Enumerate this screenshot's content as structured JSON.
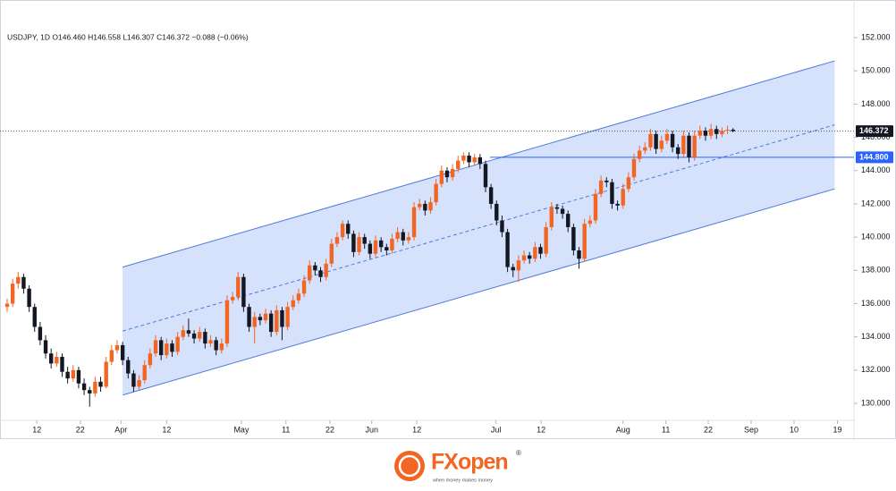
{
  "chart_data": {
    "type": "candlestick",
    "title": "USDJPY, 1D  O146.460  H146.558  L146.307  C146.372  −0.088 (−0.06%)",
    "up_color": "#f26522",
    "down_color": "#131722",
    "xlim": [
      -1.3,
      154
    ],
    "ylim": [
      128.98,
      154.26
    ],
    "yticks": [
      {
        "value": 130,
        "label": "130.000"
      },
      {
        "value": 132,
        "label": "132.000"
      },
      {
        "value": 134,
        "label": "134.000"
      },
      {
        "value": 136,
        "label": "136.000"
      },
      {
        "value": 138,
        "label": "138.000"
      },
      {
        "value": 140,
        "label": "140.000"
      },
      {
        "value": 142,
        "label": "142.000"
      },
      {
        "value": 144,
        "label": "144.000"
      },
      {
        "value": 146,
        "label": "146.000"
      },
      {
        "value": 148,
        "label": "148.000"
      },
      {
        "value": 150,
        "label": "150.000"
      },
      {
        "value": 152,
        "label": "152.000"
      }
    ],
    "xticks": [
      {
        "value": 5.4,
        "label": "12"
      },
      {
        "value": 13.3,
        "label": "22"
      },
      {
        "value": 20.7,
        "label": "Apr"
      },
      {
        "value": 29,
        "label": "12"
      },
      {
        "value": 42.6,
        "label": "May"
      },
      {
        "value": 50.7,
        "label": "11"
      },
      {
        "value": 58.7,
        "label": "22"
      },
      {
        "value": 66.3,
        "label": "Jun"
      },
      {
        "value": 74.5,
        "label": "12"
      },
      {
        "value": 88.9,
        "label": "Jul"
      },
      {
        "value": 97.1,
        "label": "12"
      },
      {
        "value": 112,
        "label": "Aug"
      },
      {
        "value": 119.8,
        "label": "11"
      },
      {
        "value": 127.5,
        "label": "22"
      },
      {
        "value": 135.3,
        "label": "Sep"
      },
      {
        "value": 143.1,
        "label": "10"
      },
      {
        "value": 151,
        "label": "19"
      }
    ],
    "candles": [
      [
        135.8,
        136.3,
        135.5,
        136.0
      ],
      [
        136.0,
        137.5,
        135.8,
        137.2
      ],
      [
        137.2,
        137.9,
        136.9,
        137.6
      ],
      [
        137.6,
        137.8,
        136.6,
        136.9
      ],
      [
        136.9,
        137.1,
        135.5,
        135.8
      ],
      [
        135.8,
        136.0,
        134.3,
        134.6
      ],
      [
        134.6,
        134.9,
        133.5,
        133.8
      ],
      [
        133.8,
        134.1,
        132.7,
        133.0
      ],
      [
        133.0,
        133.3,
        132.1,
        132.4
      ],
      [
        132.4,
        133.1,
        132.2,
        132.8
      ],
      [
        132.8,
        133.0,
        131.6,
        131.9
      ],
      [
        131.9,
        132.2,
        131.2,
        131.5
      ],
      [
        131.5,
        132.3,
        131.3,
        132.0
      ],
      [
        132.0,
        132.2,
        130.9,
        131.2
      ],
      [
        131.2,
        131.5,
        130.5,
        130.8
      ],
      [
        130.8,
        131.0,
        129.8,
        130.6
      ],
      [
        130.6,
        131.6,
        130.4,
        131.3
      ],
      [
        131.3,
        131.6,
        130.7,
        131.0
      ],
      [
        131.0,
        132.8,
        130.9,
        132.5
      ],
      [
        132.5,
        133.5,
        132.3,
        133.2
      ],
      [
        133.2,
        133.8,
        133.0,
        133.5
      ],
      [
        133.5,
        133.7,
        132.3,
        132.6
      ],
      [
        132.6,
        132.8,
        131.5,
        131.8
      ],
      [
        131.8,
        132.0,
        130.7,
        131.0
      ],
      [
        131.0,
        131.7,
        130.8,
        131.4
      ],
      [
        131.4,
        132.6,
        131.2,
        132.3
      ],
      [
        132.3,
        133.3,
        132.1,
        133.0
      ],
      [
        133.0,
        134.1,
        132.8,
        133.8
      ],
      [
        133.8,
        134.0,
        132.6,
        132.9
      ],
      [
        132.9,
        133.9,
        132.7,
        133.6
      ],
      [
        133.6,
        133.8,
        132.8,
        133.1
      ],
      [
        133.1,
        134.3,
        132.9,
        134.0
      ],
      [
        134.0,
        134.7,
        133.8,
        134.4
      ],
      [
        134.4,
        135.1,
        134.0,
        134.2
      ],
      [
        134.2,
        134.4,
        133.6,
        133.9
      ],
      [
        133.9,
        134.6,
        133.7,
        134.3
      ],
      [
        134.3,
        134.5,
        133.3,
        133.6
      ],
      [
        133.6,
        134.1,
        133.4,
        133.8
      ],
      [
        133.8,
        134.0,
        132.9,
        133.2
      ],
      [
        133.2,
        133.9,
        133.0,
        133.6
      ],
      [
        133.6,
        136.5,
        133.4,
        136.2
      ],
      [
        136.2,
        136.7,
        136.0,
        136.4
      ],
      [
        136.4,
        137.9,
        136.2,
        137.6
      ],
      [
        137.6,
        137.8,
        135.5,
        135.8
      ],
      [
        135.8,
        136.0,
        134.3,
        134.6
      ],
      [
        134.6,
        135.5,
        133.6,
        135.2
      ],
      [
        135.2,
        135.4,
        134.7,
        135.0
      ],
      [
        135.0,
        135.7,
        134.8,
        135.4
      ],
      [
        135.4,
        135.6,
        134.0,
        134.3
      ],
      [
        134.3,
        135.9,
        134.1,
        135.6
      ],
      [
        135.6,
        135.8,
        133.8,
        134.6
      ],
      [
        134.6,
        136.1,
        134.4,
        135.8
      ],
      [
        135.8,
        136.5,
        135.6,
        136.2
      ],
      [
        136.2,
        136.9,
        136.0,
        136.6
      ],
      [
        136.6,
        137.7,
        136.4,
        137.4
      ],
      [
        137.4,
        138.6,
        137.2,
        138.3
      ],
      [
        138.3,
        138.5,
        137.7,
        138.0
      ],
      [
        138.0,
        138.2,
        137.3,
        137.6
      ],
      [
        137.6,
        138.7,
        137.4,
        138.4
      ],
      [
        138.4,
        139.9,
        138.2,
        139.6
      ],
      [
        139.6,
        140.3,
        139.4,
        140.0
      ],
      [
        140.0,
        141.0,
        139.8,
        140.8
      ],
      [
        140.8,
        141.0,
        139.9,
        140.2
      ],
      [
        140.2,
        140.4,
        138.8,
        139.1
      ],
      [
        139.1,
        140.3,
        138.9,
        140.0
      ],
      [
        140.0,
        140.2,
        139.3,
        139.6
      ],
      [
        139.6,
        139.8,
        138.7,
        139.0
      ],
      [
        139.0,
        140.1,
        138.8,
        139.8
      ],
      [
        139.8,
        140.0,
        139.1,
        139.4
      ],
      [
        139.4,
        139.6,
        138.9,
        139.2
      ],
      [
        139.2,
        140.2,
        139.0,
        139.9
      ],
      [
        139.9,
        140.6,
        139.7,
        140.3
      ],
      [
        140.3,
        140.5,
        139.5,
        139.8
      ],
      [
        139.8,
        140.3,
        139.6,
        140.0
      ],
      [
        140.0,
        142.1,
        139.8,
        141.8
      ],
      [
        141.8,
        142.3,
        141.6,
        142.0
      ],
      [
        142.0,
        142.2,
        141.3,
        141.6
      ],
      [
        141.6,
        142.4,
        141.4,
        142.1
      ],
      [
        142.1,
        143.5,
        141.9,
        143.2
      ],
      [
        143.2,
        144.3,
        143.0,
        144.0
      ],
      [
        144.0,
        144.2,
        143.3,
        143.6
      ],
      [
        143.6,
        144.4,
        143.4,
        144.1
      ],
      [
        144.1,
        144.9,
        143.9,
        144.6
      ],
      [
        144.6,
        145.1,
        144.4,
        144.9
      ],
      [
        144.9,
        145.1,
        144.2,
        144.5
      ],
      [
        144.5,
        145.0,
        144.3,
        144.8
      ],
      [
        144.8,
        145.0,
        144.1,
        144.4
      ],
      [
        144.4,
        144.6,
        142.7,
        143.0
      ],
      [
        143.0,
        143.2,
        141.7,
        142.0
      ],
      [
        142.0,
        142.2,
        140.7,
        141.0
      ],
      [
        141.0,
        141.3,
        140.0,
        140.3
      ],
      [
        140.3,
        140.5,
        137.9,
        138.2
      ],
      [
        138.2,
        138.4,
        137.6,
        138.0
      ],
      [
        138.0,
        138.9,
        137.3,
        138.6
      ],
      [
        138.6,
        139.2,
        138.4,
        138.9
      ],
      [
        138.9,
        139.1,
        138.4,
        138.7
      ],
      [
        138.7,
        139.7,
        138.5,
        139.4
      ],
      [
        139.4,
        139.6,
        138.7,
        139.0
      ],
      [
        139.0,
        140.9,
        138.8,
        140.6
      ],
      [
        140.6,
        142.1,
        140.4,
        141.8
      ],
      [
        141.8,
        142.0,
        141.4,
        141.7
      ],
      [
        141.7,
        141.9,
        141.1,
        141.4
      ],
      [
        141.4,
        141.6,
        140.3,
        140.6
      ],
      [
        140.6,
        140.8,
        138.9,
        139.2
      ],
      [
        139.2,
        139.4,
        138.1,
        138.7
      ],
      [
        138.7,
        141.1,
        138.5,
        140.8
      ],
      [
        140.8,
        141.3,
        140.6,
        141.0
      ],
      [
        141.0,
        142.9,
        140.8,
        142.6
      ],
      [
        142.6,
        143.7,
        142.4,
        143.4
      ],
      [
        143.4,
        143.6,
        143.0,
        143.3
      ],
      [
        143.3,
        143.5,
        141.7,
        142.0
      ],
      [
        142.0,
        142.2,
        141.6,
        141.9
      ],
      [
        141.9,
        143.2,
        141.7,
        142.9
      ],
      [
        142.9,
        143.9,
        142.7,
        143.6
      ],
      [
        143.6,
        145.0,
        143.4,
        144.7
      ],
      [
        144.7,
        145.5,
        144.5,
        145.2
      ],
      [
        145.2,
        145.7,
        145.0,
        145.4
      ],
      [
        145.4,
        146.5,
        145.2,
        146.2
      ],
      [
        146.2,
        146.4,
        145.0,
        145.3
      ],
      [
        145.3,
        146.1,
        145.1,
        145.8
      ],
      [
        145.8,
        146.5,
        145.6,
        146.2
      ],
      [
        146.2,
        146.4,
        145.1,
        145.4
      ],
      [
        145.4,
        145.6,
        144.7,
        145.0
      ],
      [
        145.0,
        146.4,
        144.8,
        146.1
      ],
      [
        146.1,
        146.3,
        144.5,
        144.8
      ],
      [
        144.8,
        146.4,
        144.6,
        146.1
      ],
      [
        146.1,
        146.7,
        145.9,
        146.4
      ],
      [
        146.4,
        146.6,
        145.8,
        146.1
      ],
      [
        146.1,
        146.8,
        145.9,
        146.5
      ],
      [
        146.5,
        146.7,
        145.9,
        146.2
      ],
      [
        146.2,
        146.6,
        146.0,
        146.4
      ],
      [
        146.4,
        146.7,
        146.2,
        146.46
      ],
      [
        146.46,
        146.558,
        146.307,
        146.372
      ]
    ],
    "channel": {
      "x": [
        21,
        150.5
      ],
      "upper": [
        138.2,
        150.6
      ],
      "middle": [
        134.35,
        146.75
      ],
      "lower": [
        130.5,
        142.9
      ],
      "color": "#4c7bdc",
      "fill": "#cfdcfb"
    },
    "last_price": {
      "value": 146.372,
      "label": "146.372",
      "color": "#131722"
    },
    "level": {
      "value": 144.8,
      "label": "144.800",
      "color": "#2962ff"
    },
    "brand": {
      "name": "FXopen",
      "mark": "®",
      "tagline": "when money makes money"
    }
  }
}
